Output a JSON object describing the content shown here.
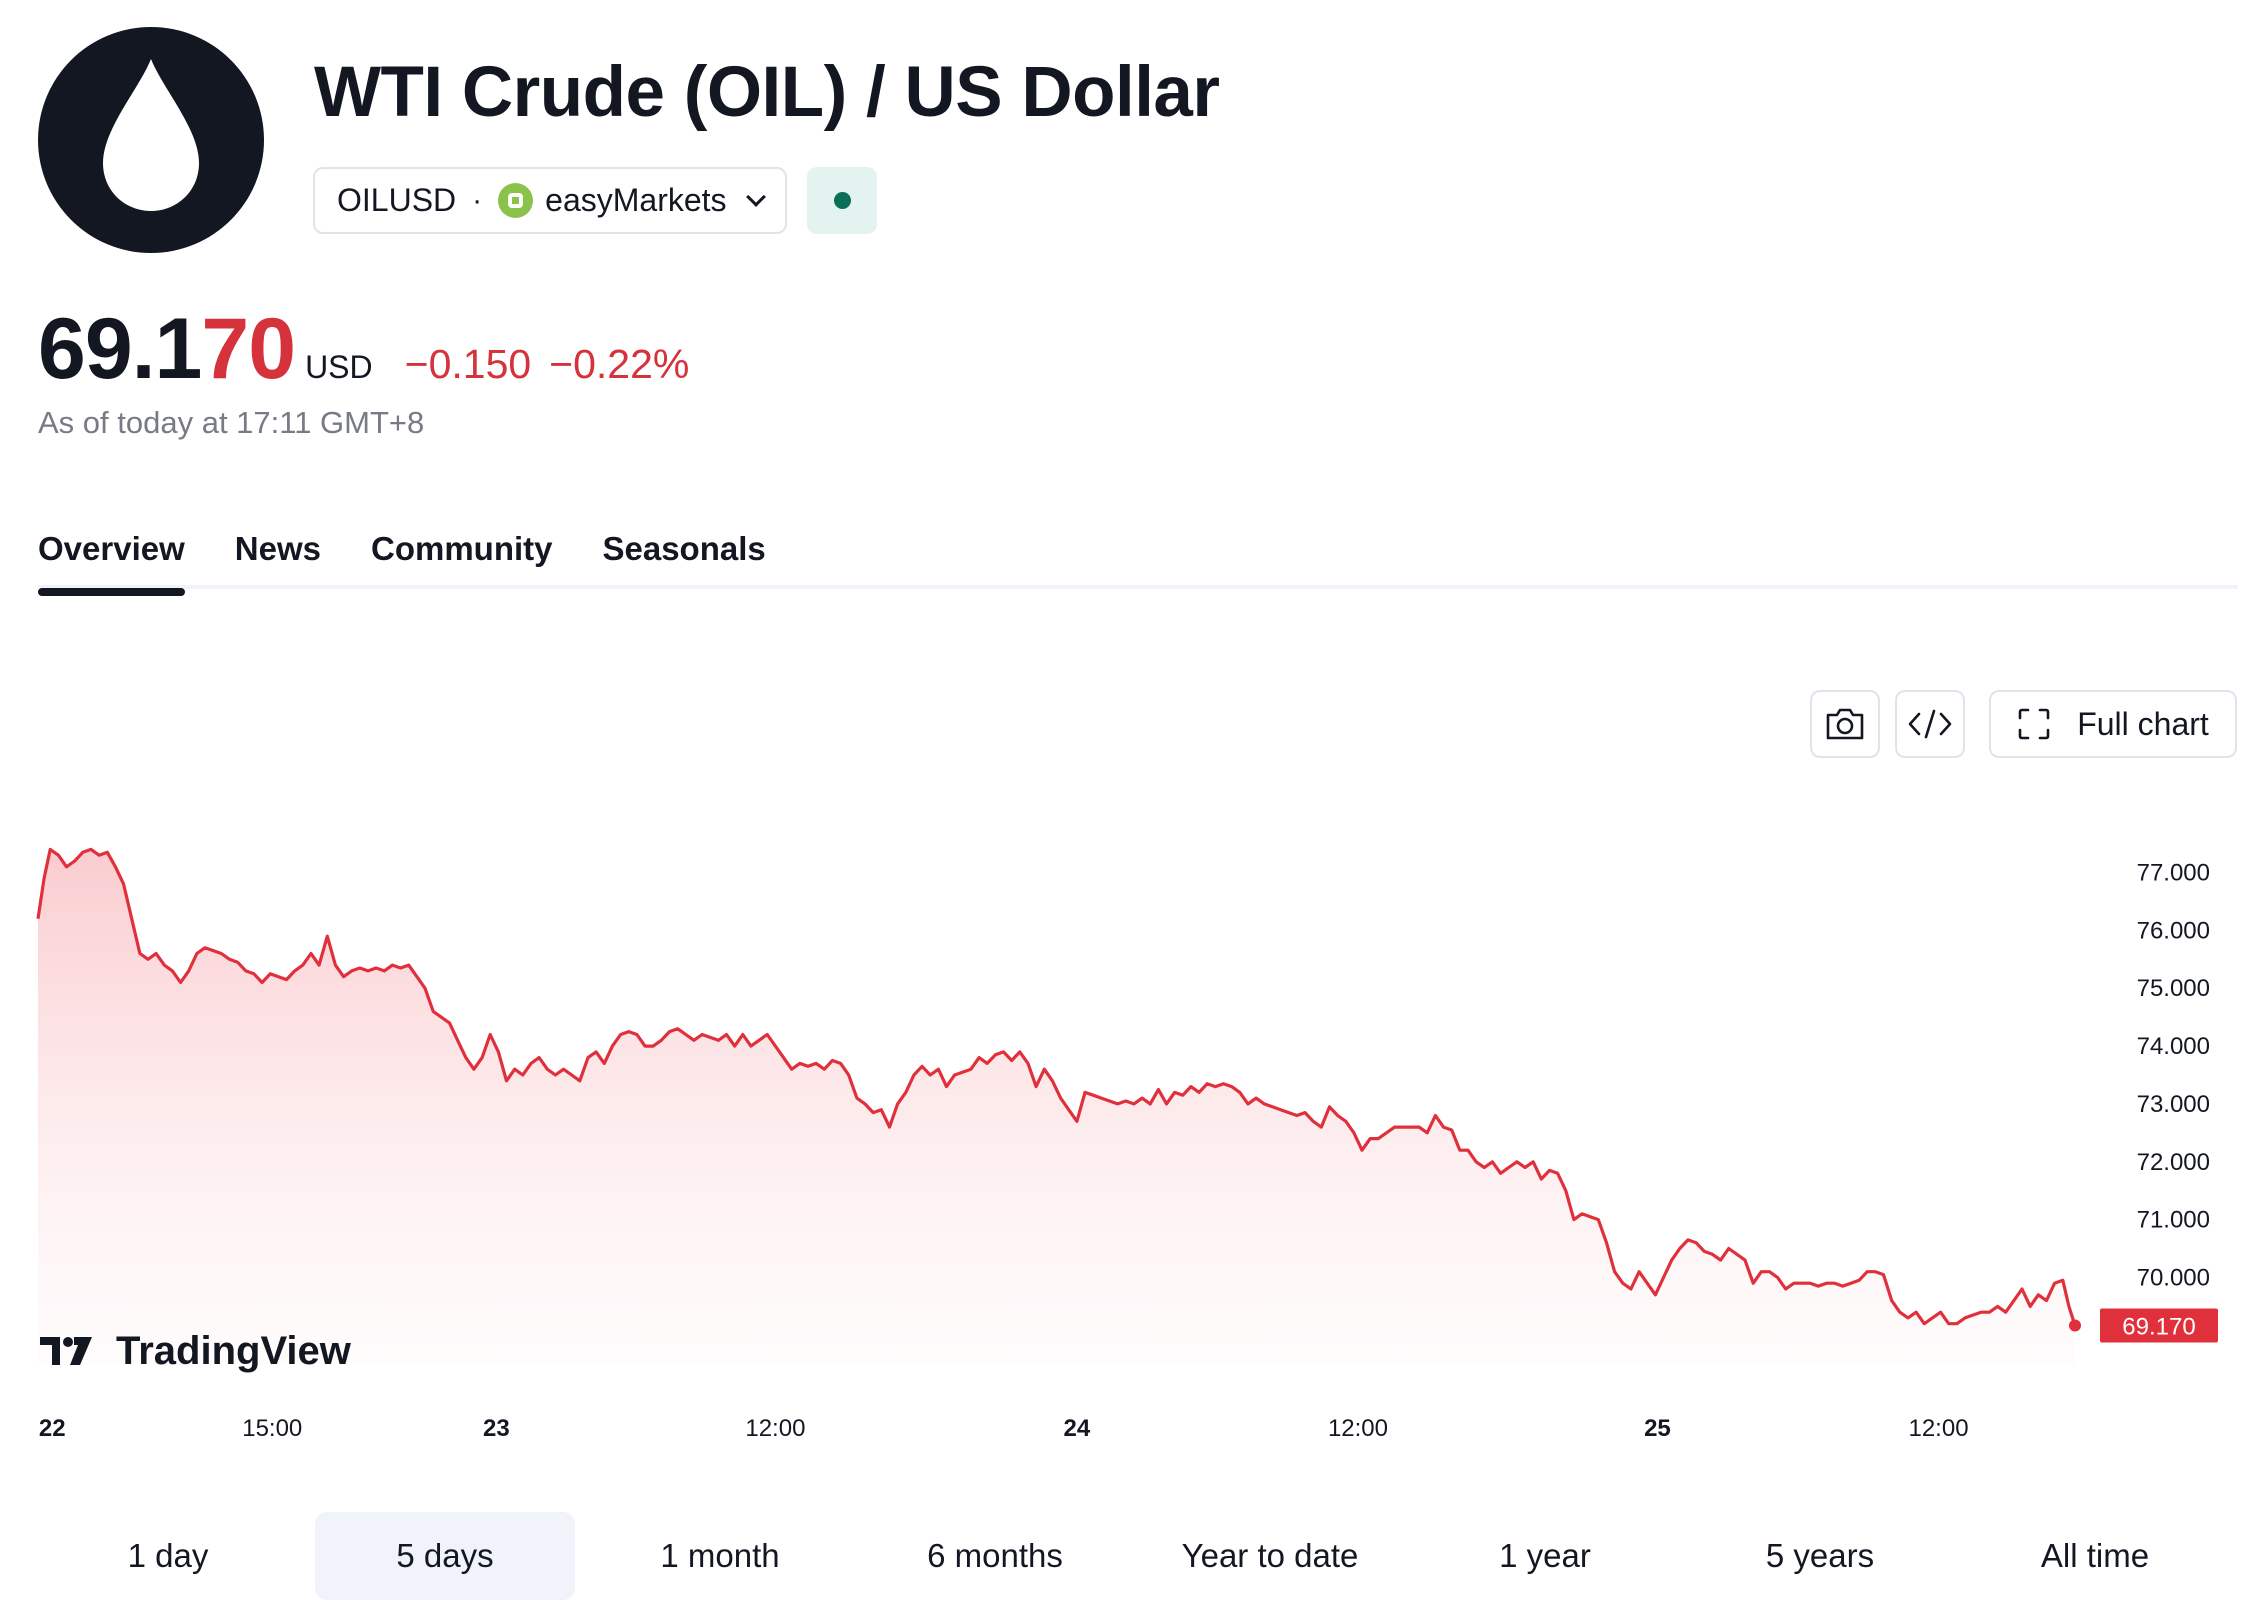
{
  "header": {
    "logo_icon": "oil-drop-icon",
    "title": "WTI Crude (OIL) / US Dollar",
    "symbol": "OILUSD",
    "separator": "·",
    "broker": "easyMarkets",
    "status_color": "#0b6e58"
  },
  "price": {
    "main": "69.1",
    "tail": "70",
    "currency": "USD",
    "change": "−0.150",
    "change_percent": "−0.22%",
    "as_of": "As of today at 17:11 GMT+8"
  },
  "tabs": [
    {
      "label": "Overview",
      "active": true
    },
    {
      "label": "News",
      "active": false
    },
    {
      "label": "Community",
      "active": false
    },
    {
      "label": "Seasonals",
      "active": false
    }
  ],
  "toolbar": {
    "camera_icon": "camera-icon",
    "embed_icon": "code-icon",
    "full_chart_label": "Full chart"
  },
  "chart_data": {
    "type": "area",
    "brand": "TradingView",
    "line_color": "#e0303c",
    "last_value": 69.17,
    "last_value_label": "69.170",
    "y_ticks": [
      77,
      76,
      75,
      74,
      73,
      72,
      71,
      70
    ],
    "y_tick_labels": [
      "77.000",
      "76.000",
      "75.000",
      "74.000",
      "73.000",
      "72.000",
      "71.000",
      "70.000"
    ],
    "ylim": [
      68.4,
      78.6
    ],
    "x_range": [
      0,
      100
    ],
    "x_ticks": [
      {
        "pos": 0.7,
        "label": "22",
        "bold": true
      },
      {
        "pos": 11.5,
        "label": "15:00",
        "bold": false
      },
      {
        "pos": 22.5,
        "label": "23",
        "bold": true
      },
      {
        "pos": 36.2,
        "label": "12:00",
        "bold": false
      },
      {
        "pos": 51.0,
        "label": "24",
        "bold": true
      },
      {
        "pos": 64.8,
        "label": "12:00",
        "bold": false
      },
      {
        "pos": 79.5,
        "label": "25",
        "bold": true
      },
      {
        "pos": 93.3,
        "label": "12:00",
        "bold": false
      }
    ],
    "points": [
      [
        0.0,
        76.2
      ],
      [
        0.3,
        76.9
      ],
      [
        0.6,
        77.4
      ],
      [
        1.0,
        77.3
      ],
      [
        1.4,
        77.1
      ],
      [
        1.8,
        77.2
      ],
      [
        2.2,
        77.35
      ],
      [
        2.6,
        77.4
      ],
      [
        3.0,
        77.3
      ],
      [
        3.4,
        77.35
      ],
      [
        3.8,
        77.1
      ],
      [
        4.2,
        76.8
      ],
      [
        4.6,
        76.2
      ],
      [
        5.0,
        75.6
      ],
      [
        5.4,
        75.5
      ],
      [
        5.8,
        75.6
      ],
      [
        6.2,
        75.4
      ],
      [
        6.6,
        75.3
      ],
      [
        7.0,
        75.1
      ],
      [
        7.4,
        75.3
      ],
      [
        7.8,
        75.6
      ],
      [
        8.2,
        75.7
      ],
      [
        8.6,
        75.65
      ],
      [
        9.0,
        75.6
      ],
      [
        9.4,
        75.5
      ],
      [
        9.8,
        75.45
      ],
      [
        10.2,
        75.3
      ],
      [
        10.6,
        75.25
      ],
      [
        11.0,
        75.1
      ],
      [
        11.4,
        75.25
      ],
      [
        11.8,
        75.2
      ],
      [
        12.2,
        75.15
      ],
      [
        12.6,
        75.3
      ],
      [
        13.0,
        75.4
      ],
      [
        13.4,
        75.6
      ],
      [
        13.8,
        75.4
      ],
      [
        14.2,
        75.9
      ],
      [
        14.6,
        75.4
      ],
      [
        15.0,
        75.2
      ],
      [
        15.4,
        75.3
      ],
      [
        15.8,
        75.35
      ],
      [
        16.2,
        75.3
      ],
      [
        16.6,
        75.35
      ],
      [
        17.0,
        75.3
      ],
      [
        17.4,
        75.4
      ],
      [
        17.8,
        75.35
      ],
      [
        18.2,
        75.4
      ],
      [
        18.6,
        75.2
      ],
      [
        19.0,
        75.0
      ],
      [
        19.4,
        74.6
      ],
      [
        19.8,
        74.5
      ],
      [
        20.2,
        74.4
      ],
      [
        20.6,
        74.1
      ],
      [
        21.0,
        73.8
      ],
      [
        21.4,
        73.6
      ],
      [
        21.8,
        73.8
      ],
      [
        22.2,
        74.2
      ],
      [
        22.6,
        73.9
      ],
      [
        23.0,
        73.4
      ],
      [
        23.4,
        73.6
      ],
      [
        23.8,
        73.5
      ],
      [
        24.2,
        73.7
      ],
      [
        24.6,
        73.8
      ],
      [
        25.0,
        73.6
      ],
      [
        25.4,
        73.5
      ],
      [
        25.8,
        73.6
      ],
      [
        26.2,
        73.5
      ],
      [
        26.6,
        73.4
      ],
      [
        27.0,
        73.8
      ],
      [
        27.4,
        73.9
      ],
      [
        27.8,
        73.7
      ],
      [
        28.2,
        74.0
      ],
      [
        28.6,
        74.2
      ],
      [
        29.0,
        74.25
      ],
      [
        29.4,
        74.2
      ],
      [
        29.8,
        74.0
      ],
      [
        30.2,
        74.0
      ],
      [
        30.6,
        74.1
      ],
      [
        31.0,
        74.25
      ],
      [
        31.4,
        74.3
      ],
      [
        31.8,
        74.2
      ],
      [
        32.2,
        74.1
      ],
      [
        32.6,
        74.2
      ],
      [
        33.0,
        74.15
      ],
      [
        33.4,
        74.1
      ],
      [
        33.8,
        74.2
      ],
      [
        34.2,
        74.0
      ],
      [
        34.6,
        74.2
      ],
      [
        35.0,
        74.0
      ],
      [
        35.4,
        74.1
      ],
      [
        35.8,
        74.2
      ],
      [
        36.2,
        74.0
      ],
      [
        36.6,
        73.8
      ],
      [
        37.0,
        73.6
      ],
      [
        37.4,
        73.7
      ],
      [
        37.8,
        73.65
      ],
      [
        38.2,
        73.7
      ],
      [
        38.6,
        73.6
      ],
      [
        39.0,
        73.75
      ],
      [
        39.4,
        73.7
      ],
      [
        39.8,
        73.5
      ],
      [
        40.2,
        73.1
      ],
      [
        40.6,
        73.0
      ],
      [
        41.0,
        72.85
      ],
      [
        41.4,
        72.9
      ],
      [
        41.8,
        72.6
      ],
      [
        42.2,
        73.0
      ],
      [
        42.6,
        73.2
      ],
      [
        43.0,
        73.5
      ],
      [
        43.4,
        73.65
      ],
      [
        43.8,
        73.5
      ],
      [
        44.2,
        73.6
      ],
      [
        44.6,
        73.3
      ],
      [
        45.0,
        73.5
      ],
      [
        45.4,
        73.55
      ],
      [
        45.8,
        73.6
      ],
      [
        46.2,
        73.8
      ],
      [
        46.6,
        73.7
      ],
      [
        47.0,
        73.85
      ],
      [
        47.4,
        73.9
      ],
      [
        47.8,
        73.75
      ],
      [
        48.2,
        73.9
      ],
      [
        48.6,
        73.7
      ],
      [
        49.0,
        73.3
      ],
      [
        49.4,
        73.6
      ],
      [
        49.8,
        73.4
      ],
      [
        50.2,
        73.1
      ],
      [
        50.6,
        72.9
      ],
      [
        51.0,
        72.7
      ],
      [
        51.4,
        73.2
      ],
      [
        51.8,
        73.15
      ],
      [
        52.2,
        73.1
      ],
      [
        52.6,
        73.05
      ],
      [
        53.0,
        73.0
      ],
      [
        53.4,
        73.05
      ],
      [
        53.8,
        73.0
      ],
      [
        54.2,
        73.1
      ],
      [
        54.6,
        73.0
      ],
      [
        55.0,
        73.25
      ],
      [
        55.4,
        73.0
      ],
      [
        55.8,
        73.2
      ],
      [
        56.2,
        73.15
      ],
      [
        56.6,
        73.3
      ],
      [
        57.0,
        73.2
      ],
      [
        57.4,
        73.35
      ],
      [
        57.8,
        73.3
      ],
      [
        58.2,
        73.35
      ],
      [
        58.6,
        73.3
      ],
      [
        59.0,
        73.2
      ],
      [
        59.4,
        73.0
      ],
      [
        59.8,
        73.1
      ],
      [
        60.2,
        73.0
      ],
      [
        60.6,
        72.95
      ],
      [
        61.0,
        72.9
      ],
      [
        61.4,
        72.85
      ],
      [
        61.8,
        72.8
      ],
      [
        62.2,
        72.85
      ],
      [
        62.6,
        72.7
      ],
      [
        63.0,
        72.6
      ],
      [
        63.4,
        72.95
      ],
      [
        63.8,
        72.8
      ],
      [
        64.2,
        72.7
      ],
      [
        64.6,
        72.5
      ],
      [
        65.0,
        72.2
      ],
      [
        65.4,
        72.4
      ],
      [
        65.8,
        72.4
      ],
      [
        66.2,
        72.5
      ],
      [
        66.6,
        72.6
      ],
      [
        67.0,
        72.6
      ],
      [
        67.4,
        72.6
      ],
      [
        67.8,
        72.6
      ],
      [
        68.2,
        72.5
      ],
      [
        68.6,
        72.8
      ],
      [
        69.0,
        72.6
      ],
      [
        69.4,
        72.55
      ],
      [
        69.8,
        72.2
      ],
      [
        70.2,
        72.2
      ],
      [
        70.6,
        72.0
      ],
      [
        71.0,
        71.9
      ],
      [
        71.4,
        72.0
      ],
      [
        71.8,
        71.8
      ],
      [
        72.2,
        71.9
      ],
      [
        72.6,
        72.0
      ],
      [
        73.0,
        71.9
      ],
      [
        73.4,
        72.0
      ],
      [
        73.8,
        71.7
      ],
      [
        74.2,
        71.85
      ],
      [
        74.6,
        71.8
      ],
      [
        75.0,
        71.5
      ],
      [
        75.4,
        71.0
      ],
      [
        75.8,
        71.1
      ],
      [
        76.2,
        71.05
      ],
      [
        76.6,
        71.0
      ],
      [
        77.0,
        70.6
      ],
      [
        77.4,
        70.1
      ],
      [
        77.8,
        69.9
      ],
      [
        78.2,
        69.8
      ],
      [
        78.6,
        70.1
      ],
      [
        79.0,
        69.9
      ],
      [
        79.4,
        69.7
      ],
      [
        79.8,
        70.0
      ],
      [
        80.2,
        70.3
      ],
      [
        80.6,
        70.5
      ],
      [
        81.0,
        70.65
      ],
      [
        81.4,
        70.6
      ],
      [
        81.8,
        70.45
      ],
      [
        82.2,
        70.4
      ],
      [
        82.6,
        70.3
      ],
      [
        83.0,
        70.5
      ],
      [
        83.4,
        70.4
      ],
      [
        83.8,
        70.3
      ],
      [
        84.2,
        69.9
      ],
      [
        84.6,
        70.1
      ],
      [
        85.0,
        70.1
      ],
      [
        85.4,
        70.0
      ],
      [
        85.8,
        69.8
      ],
      [
        86.2,
        69.9
      ],
      [
        86.6,
        69.9
      ],
      [
        87.0,
        69.9
      ],
      [
        87.4,
        69.85
      ],
      [
        87.8,
        69.9
      ],
      [
        88.2,
        69.9
      ],
      [
        88.6,
        69.85
      ],
      [
        89.0,
        69.9
      ],
      [
        89.4,
        69.95
      ],
      [
        89.8,
        70.1
      ],
      [
        90.2,
        70.1
      ],
      [
        90.6,
        70.05
      ],
      [
        91.0,
        69.6
      ],
      [
        91.4,
        69.4
      ],
      [
        91.8,
        69.3
      ],
      [
        92.2,
        69.4
      ],
      [
        92.6,
        69.2
      ],
      [
        93.0,
        69.3
      ],
      [
        93.4,
        69.4
      ],
      [
        93.8,
        69.2
      ],
      [
        94.2,
        69.2
      ],
      [
        94.6,
        69.3
      ],
      [
        95.0,
        69.35
      ],
      [
        95.4,
        69.4
      ],
      [
        95.8,
        69.4
      ],
      [
        96.2,
        69.5
      ],
      [
        96.6,
        69.4
      ],
      [
        97.0,
        69.6
      ],
      [
        97.4,
        69.8
      ],
      [
        97.8,
        69.5
      ],
      [
        98.2,
        69.7
      ],
      [
        98.6,
        69.6
      ],
      [
        99.0,
        69.9
      ],
      [
        99.4,
        69.95
      ],
      [
        99.7,
        69.5
      ],
      [
        100.0,
        69.17
      ]
    ]
  },
  "ranges": [
    {
      "label": "1 day",
      "active": false
    },
    {
      "label": "5 days",
      "active": true
    },
    {
      "label": "1 month",
      "active": false
    },
    {
      "label": "6 months",
      "active": false
    },
    {
      "label": "Year to date",
      "active": false
    },
    {
      "label": "1 year",
      "active": false
    },
    {
      "label": "5 years",
      "active": false
    },
    {
      "label": "All time",
      "active": false
    }
  ]
}
